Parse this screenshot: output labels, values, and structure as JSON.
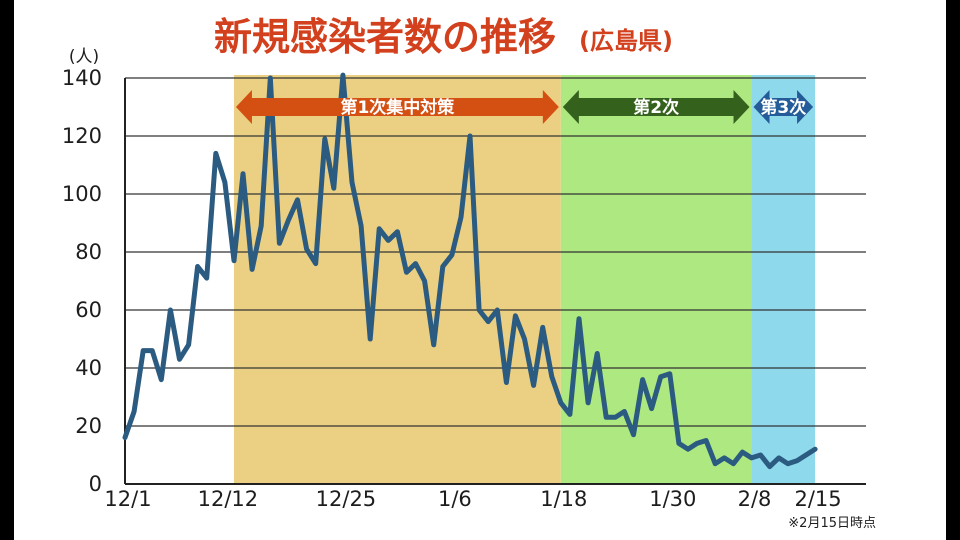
{
  "chart_data": {
    "type": "line",
    "title": "新規感染者数の推移",
    "subtitle": "(広島県)",
    "y_unit": "(人)",
    "ylim": [
      0,
      140
    ],
    "yticks": [
      0,
      20,
      40,
      60,
      80,
      100,
      120,
      140
    ],
    "grid": true,
    "x_ticks": [
      "12/1",
      "12/12",
      "12/25",
      "1/6",
      "1/18",
      "1/30",
      "2/8",
      "2/15"
    ],
    "x_tick_days": [
      0,
      11,
      24,
      36,
      48,
      60,
      69,
      76
    ],
    "periods": [
      {
        "label": "第1次集中対策",
        "start_day": 12,
        "end_day": 48,
        "fill": "#ebd083",
        "arrow": "#d44f12"
      },
      {
        "label": "第2次",
        "start_day": 48,
        "end_day": 69,
        "fill": "#aee880",
        "arrow": "#34621d"
      },
      {
        "label": "第3次",
        "start_day": 69,
        "end_day": 76,
        "fill": "#8ed9ec",
        "arrow": "#235c98"
      }
    ],
    "series": [
      {
        "color": "#2b5b80",
        "values": [
          16,
          25,
          46,
          46,
          36,
          60,
          43,
          48,
          75,
          71,
          114,
          104,
          77,
          107,
          74,
          89,
          140,
          83,
          91,
          98,
          81,
          76,
          119,
          102,
          141,
          104,
          89,
          50,
          88,
          84,
          87,
          73,
          76,
          70,
          48,
          75,
          79,
          92,
          120,
          60,
          56,
          60,
          35,
          58,
          50,
          34,
          54,
          37,
          28,
          24,
          57,
          28,
          45,
          23,
          23,
          25,
          17,
          36,
          26,
          37,
          38,
          14,
          12,
          14,
          15,
          7,
          9,
          7,
          11,
          9,
          10,
          6,
          9,
          7,
          8,
          10,
          12
        ]
      }
    ]
  },
  "footnote": "※2月15日時点"
}
